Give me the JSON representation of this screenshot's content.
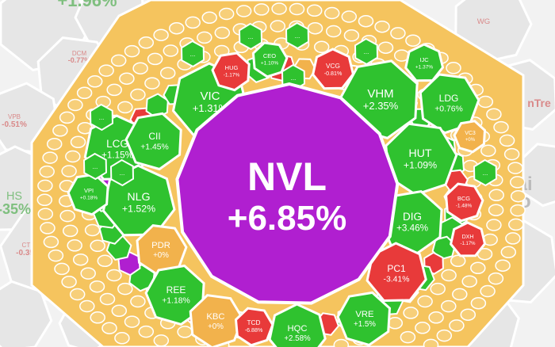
{
  "colors": {
    "up": "#2fc22f",
    "down": "#e83a3a",
    "flat": "#f2b24c",
    "ceiling": "#b01fd0",
    "frame": "#f5c45e",
    "border": "#ffffff",
    "faded_up": "#7fbf7f",
    "faded_down": "#d98a8a",
    "background": "#f2f2f2"
  },
  "background_tiles": [
    {
      "ticker": "",
      "change": "+1.96%",
      "tone": "up"
    },
    {
      "ticker": "DCM",
      "change": "-0.77%",
      "tone": "down"
    },
    {
      "ticker": "VPB",
      "change": "-0.51%",
      "tone": "down"
    },
    {
      "ticker": "HS",
      "change": "-35%",
      "tone": "up"
    },
    {
      "ticker": "CTG",
      "change": "-0.35%",
      "tone": "down"
    },
    {
      "ticker": "WG",
      "change": "",
      "tone": "down"
    },
    {
      "ticker": "",
      "change": "cải",
      "tone": "gray"
    },
    {
      "ticker": "",
      "change": "ho",
      "tone": "gray"
    },
    {
      "ticker": "",
      "change": "nTre",
      "tone": "down"
    }
  ],
  "chart_data": {
    "type": "heatmap",
    "focus": {
      "ticker": "NVL",
      "change": "+6.85%",
      "tone": "ceiling"
    },
    "cells": [
      {
        "ticker": "VIC",
        "change": "+1.31%",
        "tone": "up"
      },
      {
        "ticker": "VHM",
        "change": "+2.35%",
        "tone": "up"
      },
      {
        "ticker": "LDG",
        "change": "+0.76%",
        "tone": "up"
      },
      {
        "ticker": "LCG",
        "change": "+1.15%",
        "tone": "up"
      },
      {
        "ticker": "CII",
        "change": "+1.45%",
        "tone": "up"
      },
      {
        "ticker": "HUT",
        "change": "+1.09%",
        "tone": "up"
      },
      {
        "ticker": "NLG",
        "change": "+1.52%",
        "tone": "up"
      },
      {
        "ticker": "DIG",
        "change": "+3.46%",
        "tone": "up"
      },
      {
        "ticker": "PDR",
        "change": "+0%",
        "tone": "flat"
      },
      {
        "ticker": "PC1",
        "change": "-3.41%",
        "tone": "down"
      },
      {
        "ticker": "REE",
        "change": "+1.18%",
        "tone": "up"
      },
      {
        "ticker": "KBC",
        "change": "+0%",
        "tone": "flat"
      },
      {
        "ticker": "HQC",
        "change": "+2.58%",
        "tone": "up"
      },
      {
        "ticker": "VRE",
        "change": "+1.5%",
        "tone": "up"
      },
      {
        "ticker": "TCD",
        "change": "-6.88%",
        "tone": "down"
      },
      {
        "ticker": "VCG",
        "change": "-0.81%",
        "tone": "down"
      },
      {
        "ticker": "HUG",
        "change": "-1.17%",
        "tone": "down"
      },
      {
        "ticker": "CEO",
        "change": "+1.10%",
        "tone": "up"
      },
      {
        "ticker": "IJC",
        "change": "+1.37%",
        "tone": "up"
      },
      {
        "ticker": "VC3",
        "change": "+0%",
        "tone": "flat"
      },
      {
        "ticker": "BCG",
        "change": "-1.48%",
        "tone": "down"
      },
      {
        "ticker": "DXH",
        "change": "-1.17%",
        "tone": "down"
      },
      {
        "ticker": "VPI",
        "change": "+0.18%",
        "tone": "up"
      }
    ],
    "ellipsis": "..."
  }
}
